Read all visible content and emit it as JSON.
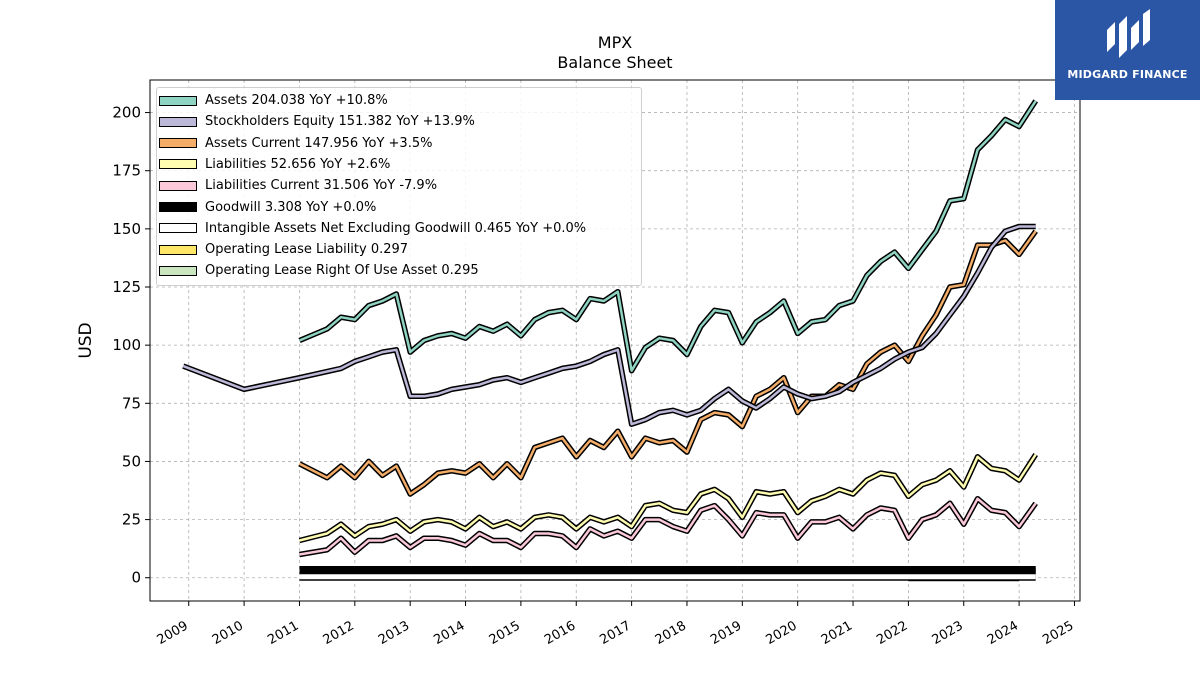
{
  "title": "MPX",
  "subtitle": "Balance  Sheet",
  "logo": {
    "text": "MIDGARD FINANCE",
    "icon": "midgard-logo-icon"
  },
  "chart_data": {
    "type": "line",
    "ylabel": "USD",
    "xlim": [
      2008.3,
      2025.1
    ],
    "ylim": [
      -10,
      214
    ],
    "yticks": [
      0,
      25,
      50,
      75,
      100,
      125,
      150,
      175,
      200
    ],
    "xticks": [
      2009,
      2010,
      2011,
      2012,
      2013,
      2014,
      2015,
      2016,
      2017,
      2018,
      2019,
      2020,
      2021,
      2022,
      2023,
      2024,
      2025
    ],
    "grid": true,
    "legend_position": "upper-left",
    "series": [
      {
        "name": "Assets  204.038 YoY +10.8%",
        "color": "#8fd4c3",
        "x": [
          2011.0,
          2011.5,
          2011.75,
          2012.0,
          2012.25,
          2012.5,
          2012.75,
          2013.0,
          2013.25,
          2013.5,
          2013.75,
          2014.0,
          2014.25,
          2014.5,
          2014.75,
          2015.0,
          2015.25,
          2015.5,
          2015.75,
          2016.0,
          2016.25,
          2016.5,
          2016.75,
          2017.0,
          2017.25,
          2017.5,
          2017.75,
          2018.0,
          2018.25,
          2018.5,
          2018.75,
          2019.0,
          2019.25,
          2019.5,
          2019.75,
          2020.0,
          2020.25,
          2020.5,
          2020.75,
          2021.0,
          2021.25,
          2021.5,
          2021.75,
          2022.0,
          2022.25,
          2022.5,
          2022.75,
          2023.0,
          2023.25,
          2023.5,
          2023.75,
          2024.0,
          2024.3
        ],
        "values": [
          102,
          107,
          112,
          111,
          117,
          119,
          122,
          97,
          102,
          104,
          105,
          103,
          108,
          106,
          109,
          104,
          111,
          114,
          115,
          111,
          120,
          119,
          123,
          89,
          99,
          103,
          102,
          96,
          108,
          115,
          114,
          101,
          110,
          114,
          119,
          105,
          110,
          111,
          117,
          119,
          130,
          136,
          140,
          133,
          141,
          149,
          162,
          163,
          184,
          190,
          197,
          194,
          205
        ]
      },
      {
        "name": "Stockholders Equity  151.382 YoY +13.9%",
        "color": "#bcb8d8",
        "x": [
          2008.9,
          2010.0,
          2011.0,
          2011.75,
          2012.0,
          2012.25,
          2012.5,
          2012.75,
          2013.0,
          2013.25,
          2013.5,
          2013.75,
          2014.0,
          2014.25,
          2014.5,
          2014.75,
          2015.0,
          2015.25,
          2015.5,
          2015.75,
          2016.0,
          2016.25,
          2016.5,
          2016.75,
          2017.0,
          2017.25,
          2017.5,
          2017.75,
          2018.0,
          2018.25,
          2018.5,
          2018.75,
          2019.0,
          2019.25,
          2019.5,
          2019.75,
          2020.0,
          2020.25,
          2020.5,
          2020.75,
          2021.0,
          2021.25,
          2021.5,
          2021.75,
          2022.0,
          2022.25,
          2022.5,
          2022.75,
          2023.0,
          2023.25,
          2023.5,
          2023.75,
          2024.0,
          2024.3
        ],
        "values": [
          91,
          81,
          86,
          90,
          93,
          95,
          97,
          98,
          78,
          78,
          79,
          81,
          82,
          83,
          85,
          86,
          84,
          86,
          88,
          90,
          91,
          93,
          96,
          98,
          66,
          68,
          71,
          72,
          70,
          72,
          77,
          81,
          76,
          73,
          77,
          82,
          79,
          77,
          78,
          80,
          84,
          87,
          90,
          94,
          97,
          99,
          105,
          113,
          121,
          131,
          142,
          149,
          151,
          151
        ]
      },
      {
        "name": "Assets Current  147.956 YoY +3.5%",
        "color": "#f4ad68",
        "x": [
          2011.0,
          2011.25,
          2011.5,
          2011.75,
          2012.0,
          2012.25,
          2012.5,
          2012.75,
          2013.0,
          2013.25,
          2013.5,
          2013.75,
          2014.0,
          2014.25,
          2014.5,
          2014.75,
          2015.0,
          2015.25,
          2015.5,
          2015.75,
          2016.0,
          2016.25,
          2016.5,
          2016.75,
          2017.0,
          2017.25,
          2017.5,
          2017.75,
          2018.0,
          2018.25,
          2018.5,
          2018.75,
          2019.0,
          2019.25,
          2019.5,
          2019.75,
          2020.0,
          2020.25,
          2020.5,
          2020.75,
          2021.0,
          2021.25,
          2021.5,
          2021.75,
          2022.0,
          2022.25,
          2022.5,
          2022.75,
          2023.0,
          2023.25,
          2023.5,
          2023.75,
          2024.0,
          2024.3
        ],
        "values": [
          49,
          46,
          43,
          48,
          43,
          50,
          44,
          48,
          36,
          40,
          45,
          46,
          45,
          49,
          43,
          49,
          43,
          56,
          58,
          60,
          52,
          59,
          56,
          63,
          52,
          60,
          58,
          59,
          54,
          68,
          71,
          70,
          65,
          78,
          81,
          86,
          71,
          78,
          78,
          83,
          81,
          92,
          97,
          100,
          93,
          104,
          113,
          125,
          126,
          143,
          143,
          145,
          139,
          149
        ]
      },
      {
        "name": "Liabilities  52.656 YoY +2.6%",
        "color": "#fdfcb0",
        "x": [
          2011.0,
          2011.5,
          2011.75,
          2012.0,
          2012.25,
          2012.5,
          2012.75,
          2013.0,
          2013.25,
          2013.5,
          2013.75,
          2014.0,
          2014.25,
          2014.5,
          2014.75,
          2015.0,
          2015.25,
          2015.5,
          2015.75,
          2016.0,
          2016.25,
          2016.5,
          2016.75,
          2017.0,
          2017.25,
          2017.5,
          2017.75,
          2018.0,
          2018.25,
          2018.5,
          2018.75,
          2019.0,
          2019.25,
          2019.5,
          2019.75,
          2020.0,
          2020.25,
          2020.5,
          2020.75,
          2021.0,
          2021.25,
          2021.5,
          2021.75,
          2022.0,
          2022.25,
          2022.5,
          2022.75,
          2023.0,
          2023.25,
          2023.5,
          2023.75,
          2024.0,
          2024.3
        ],
        "values": [
          16,
          19,
          23,
          18,
          22,
          23,
          25,
          20,
          24,
          25,
          24,
          21,
          26,
          22,
          24,
          21,
          26,
          27,
          26,
          21,
          26,
          24,
          26,
          22,
          31,
          32,
          29,
          28,
          36,
          38,
          34,
          26,
          37,
          36,
          37,
          28,
          33,
          35,
          38,
          36,
          42,
          45,
          44,
          35,
          40,
          42,
          46,
          39,
          52,
          47,
          46,
          42,
          53
        ]
      },
      {
        "name": "Liabilities Current  31.506 YoY -7.9%",
        "color": "#fbc9d9",
        "x": [
          2011.0,
          2011.5,
          2011.75,
          2012.0,
          2012.25,
          2012.5,
          2012.75,
          2013.0,
          2013.25,
          2013.5,
          2013.75,
          2014.0,
          2014.25,
          2014.5,
          2014.75,
          2015.0,
          2015.25,
          2015.5,
          2015.75,
          2016.0,
          2016.25,
          2016.5,
          2016.75,
          2017.0,
          2017.25,
          2017.5,
          2017.75,
          2018.0,
          2018.25,
          2018.5,
          2018.75,
          2019.0,
          2019.25,
          2019.5,
          2019.75,
          2020.0,
          2020.25,
          2020.5,
          2020.75,
          2021.0,
          2021.25,
          2021.5,
          2021.75,
          2022.0,
          2022.25,
          2022.5,
          2022.75,
          2023.0,
          2023.25,
          2023.5,
          2023.75,
          2024.0,
          2024.3
        ],
        "values": [
          10,
          12,
          17,
          11,
          16,
          16,
          18,
          13,
          17,
          17,
          16,
          14,
          19,
          16,
          16,
          13,
          19,
          19,
          18,
          13,
          21,
          18,
          20,
          17,
          25,
          25,
          22,
          20,
          29,
          31,
          25,
          18,
          28,
          27,
          27,
          17,
          24,
          24,
          26,
          21,
          27,
          30,
          29,
          17,
          25,
          27,
          32,
          23,
          34,
          29,
          28,
          22,
          32
        ]
      },
      {
        "name": "Goodwill  3.308 YoY +0.0%",
        "color": "#000000",
        "x": [
          2011.0,
          2024.3
        ],
        "values": [
          3.308,
          3.308
        ]
      },
      {
        "name": "Intangible Assets Net Excluding Goodwill  0.465 YoY +0.0%",
        "color": "#ffffff",
        "x": [
          2011.0,
          2024.3
        ],
        "values": [
          0.465,
          0.465
        ]
      },
      {
        "name": "Operating Lease Liability  0.297",
        "color": "#fde668",
        "x": [
          2022.0,
          2024.0
        ],
        "values": [
          0.297,
          0.297
        ]
      },
      {
        "name": "Operating Lease Right Of Use Asset  0.295",
        "color": "#c9e6c0",
        "x": [
          2022.0,
          2024.0
        ],
        "values": [
          0.295,
          0.295
        ]
      }
    ]
  }
}
